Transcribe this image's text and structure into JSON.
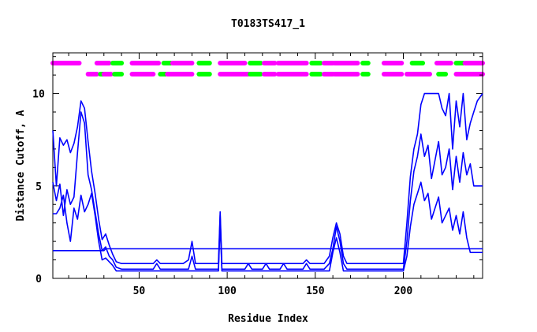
{
  "chart_data": {
    "type": "line",
    "title": "T0183TS417_1",
    "xlabel": "Residue Index",
    "ylabel": "Distance Cutoff, A",
    "xlim": [
      1,
      245
    ],
    "ylim": [
      0,
      12.2
    ],
    "x_ticks": [
      50,
      100,
      150,
      200
    ],
    "y_ticks": [
      0,
      5,
      10
    ],
    "grid": false,
    "legend": "none",
    "line_color": "#0000ff",
    "series": [
      {
        "x": [
          1,
          3,
          5,
          7,
          9,
          11,
          13,
          15,
          17,
          19,
          21,
          23,
          25,
          27,
          29,
          31,
          33,
          35,
          37,
          40,
          45,
          50,
          55,
          58,
          60,
          62,
          65,
          70,
          75,
          78,
          80,
          82,
          85,
          90,
          95,
          96,
          97,
          98,
          100,
          105,
          110,
          112,
          114,
          120,
          122,
          124,
          130,
          132,
          134,
          140,
          143,
          145,
          147,
          150,
          155,
          158,
          160,
          162,
          164,
          166,
          168,
          170,
          175,
          180,
          185,
          190,
          195,
          200,
          202,
          204,
          206,
          208,
          210,
          212,
          214,
          216,
          218,
          220,
          222,
          224,
          226,
          228,
          230,
          232,
          234,
          236,
          238,
          240,
          242,
          245
        ],
        "values": [
          8,
          5,
          7.6,
          7.2,
          7.5,
          6.8,
          7.3,
          8.2,
          9.6,
          9.2,
          7.4,
          5.8,
          4.6,
          3.2,
          2.1,
          2.4,
          1.8,
          1.3,
          0.9,
          0.8,
          0.8,
          0.8,
          0.8,
          0.8,
          1.0,
          0.8,
          0.8,
          0.8,
          0.8,
          1.0,
          2.0,
          0.8,
          0.8,
          0.8,
          0.8,
          3.6,
          0.8,
          0.8,
          0.8,
          0.8,
          0.8,
          0.8,
          0.8,
          0.8,
          0.8,
          0.8,
          0.8,
          0.8,
          0.8,
          0.8,
          0.8,
          1.0,
          0.8,
          0.8,
          0.8,
          1.2,
          2.2,
          3.0,
          2.4,
          1.2,
          0.8,
          0.8,
          0.8,
          0.8,
          0.8,
          0.8,
          0.8,
          0.8,
          3.0,
          5.5,
          7.0,
          7.8,
          9.4,
          10.0,
          10.0,
          10.0,
          10.0,
          10.0,
          9.2,
          8.8,
          10.0,
          7.0,
          9.6,
          8.2,
          10.0,
          7.5,
          8.4,
          9.0,
          9.6,
          10.0
        ]
      },
      {
        "x": [
          1,
          3,
          5,
          7,
          9,
          11,
          13,
          15,
          17,
          19,
          21,
          23,
          25,
          27,
          29,
          31,
          33,
          35,
          37,
          40,
          45,
          50,
          55,
          58,
          60,
          62,
          65,
          70,
          75,
          78,
          80,
          82,
          85,
          90,
          95,
          96,
          97,
          98,
          100,
          105,
          110,
          112,
          114,
          120,
          122,
          124,
          130,
          132,
          134,
          140,
          143,
          145,
          147,
          150,
          155,
          158,
          160,
          162,
          164,
          166,
          168,
          170,
          175,
          180,
          185,
          190,
          195,
          200,
          202,
          204,
          206,
          208,
          210,
          212,
          214,
          216,
          218,
          220,
          222,
          224,
          226,
          228,
          230,
          232,
          234,
          236,
          238,
          240,
          242,
          245
        ],
        "values": [
          5.2,
          4.2,
          5.1,
          3.4,
          4.8,
          4.0,
          4.4,
          6.8,
          9.0,
          8.4,
          5.6,
          4.8,
          3.6,
          2.4,
          1.5,
          1.7,
          1.2,
          1.0,
          0.6,
          0.5,
          0.5,
          0.5,
          0.5,
          0.5,
          0.8,
          0.5,
          0.5,
          0.5,
          0.5,
          0.5,
          1.2,
          0.5,
          0.5,
          0.5,
          0.5,
          3.4,
          0.5,
          0.5,
          0.5,
          0.5,
          0.5,
          0.8,
          0.5,
          0.5,
          0.8,
          0.5,
          0.5,
          0.8,
          0.5,
          0.5,
          0.5,
          0.8,
          0.5,
          0.5,
          0.5,
          0.8,
          1.6,
          2.8,
          2.0,
          0.8,
          0.5,
          0.5,
          0.5,
          0.5,
          0.5,
          0.5,
          0.5,
          0.5,
          2.0,
          4.2,
          5.8,
          6.6,
          7.8,
          6.6,
          7.2,
          5.4,
          6.4,
          7.4,
          5.6,
          6.0,
          7.0,
          4.8,
          6.6,
          5.2,
          6.8,
          5.6,
          6.2,
          5.0,
          5.0,
          5.0
        ]
      },
      {
        "x": [
          1,
          3,
          5,
          7,
          9,
          11,
          13,
          15,
          17,
          19,
          21,
          23,
          25,
          27,
          29,
          31,
          33,
          35,
          37,
          40,
          45,
          50,
          55,
          58,
          60,
          62,
          65,
          70,
          75,
          78,
          80,
          82,
          85,
          90,
          95,
          96,
          97,
          98,
          100,
          105,
          110,
          112,
          114,
          120,
          122,
          124,
          130,
          132,
          134,
          140,
          143,
          145,
          147,
          150,
          155,
          158,
          160,
          162,
          164,
          166,
          168,
          170,
          175,
          180,
          185,
          190,
          195,
          200,
          202,
          204,
          206,
          208,
          210,
          212,
          214,
          216,
          218,
          220,
          222,
          224,
          226,
          228,
          230,
          232,
          234,
          236,
          238,
          240,
          242,
          245
        ],
        "values": [
          3.5,
          3.5,
          3.8,
          4.5,
          3.0,
          2.0,
          3.8,
          3.2,
          4.5,
          3.6,
          4.0,
          4.6,
          3.4,
          2.0,
          1.0,
          1.1,
          0.9,
          0.7,
          0.4,
          0.4,
          0.4,
          0.4,
          0.4,
          0.4,
          0.4,
          0.4,
          0.4,
          0.4,
          0.4,
          0.4,
          0.4,
          0.4,
          0.4,
          0.4,
          0.4,
          3.0,
          0.4,
          0.4,
          0.4,
          0.4,
          0.4,
          0.4,
          0.4,
          0.4,
          0.4,
          0.4,
          0.4,
          0.4,
          0.4,
          0.4,
          0.4,
          0.4,
          0.4,
          0.4,
          0.4,
          0.4,
          1.4,
          2.2,
          1.4,
          0.4,
          0.4,
          0.4,
          0.4,
          0.4,
          0.4,
          0.4,
          0.4,
          0.4,
          1.2,
          2.8,
          4.0,
          4.6,
          5.2,
          4.2,
          4.6,
          3.2,
          3.8,
          4.4,
          3.0,
          3.4,
          3.8,
          2.6,
          3.4,
          2.4,
          3.6,
          2.2,
          1.4,
          1.4,
          1.4,
          1.4
        ]
      },
      {
        "x": [
          1,
          30,
          31,
          245
        ],
        "values": [
          1.5,
          1.5,
          1.6,
          1.6
        ]
      }
    ],
    "secondary_structure": {
      "colors": {
        "helix": "#ff00ff",
        "strand": "#00ff00"
      },
      "rows": [
        {
          "segments": [
            {
              "type": "helix",
              "start": 1,
              "end": 16
            },
            {
              "type": "helix",
              "start": 26,
              "end": 33
            },
            {
              "type": "strand",
              "start": 35,
              "end": 40
            },
            {
              "type": "helix",
              "start": 46,
              "end": 61
            },
            {
              "type": "strand",
              "start": 64,
              "end": 68
            },
            {
              "type": "helix",
              "start": 69,
              "end": 80
            },
            {
              "type": "strand",
              "start": 84,
              "end": 90
            },
            {
              "type": "helix",
              "start": 96,
              "end": 110
            },
            {
              "type": "strand",
              "start": 113,
              "end": 119
            },
            {
              "type": "helix",
              "start": 121,
              "end": 127
            },
            {
              "type": "helix",
              "start": 129,
              "end": 145
            },
            {
              "type": "strand",
              "start": 148,
              "end": 153
            },
            {
              "type": "helix",
              "start": 155,
              "end": 160
            },
            {
              "type": "helix",
              "start": 161,
              "end": 174
            },
            {
              "type": "strand",
              "start": 177,
              "end": 180
            },
            {
              "type": "helix",
              "start": 189,
              "end": 199
            },
            {
              "type": "strand",
              "start": 205,
              "end": 211
            },
            {
              "type": "helix",
              "start": 219,
              "end": 227
            },
            {
              "type": "strand",
              "start": 230,
              "end": 234
            },
            {
              "type": "helix",
              "start": 235,
              "end": 245
            }
          ]
        },
        {
          "segments": [
            {
              "type": "helix",
              "start": 21,
              "end": 26
            },
            {
              "type": "strand",
              "start": 28,
              "end": 32
            },
            {
              "type": "helix",
              "start": 30,
              "end": 34
            },
            {
              "type": "strand",
              "start": 36,
              "end": 40
            },
            {
              "type": "helix",
              "start": 46,
              "end": 58
            },
            {
              "type": "strand",
              "start": 62,
              "end": 65
            },
            {
              "type": "helix",
              "start": 66,
              "end": 80
            },
            {
              "type": "strand",
              "start": 84,
              "end": 90
            },
            {
              "type": "helix",
              "start": 96,
              "end": 112
            },
            {
              "type": "strand",
              "start": 113,
              "end": 119
            },
            {
              "type": "helix",
              "start": 121,
              "end": 127
            },
            {
              "type": "helix",
              "start": 129,
              "end": 145
            },
            {
              "type": "strand",
              "start": 148,
              "end": 153
            },
            {
              "type": "helix",
              "start": 155,
              "end": 160
            },
            {
              "type": "helix",
              "start": 161,
              "end": 174
            },
            {
              "type": "strand",
              "start": 177,
              "end": 180
            },
            {
              "type": "helix",
              "start": 189,
              "end": 199
            },
            {
              "type": "helix",
              "start": 202,
              "end": 215
            },
            {
              "type": "strand",
              "start": 220,
              "end": 224
            },
            {
              "type": "helix",
              "start": 230,
              "end": 245
            }
          ]
        }
      ]
    }
  }
}
